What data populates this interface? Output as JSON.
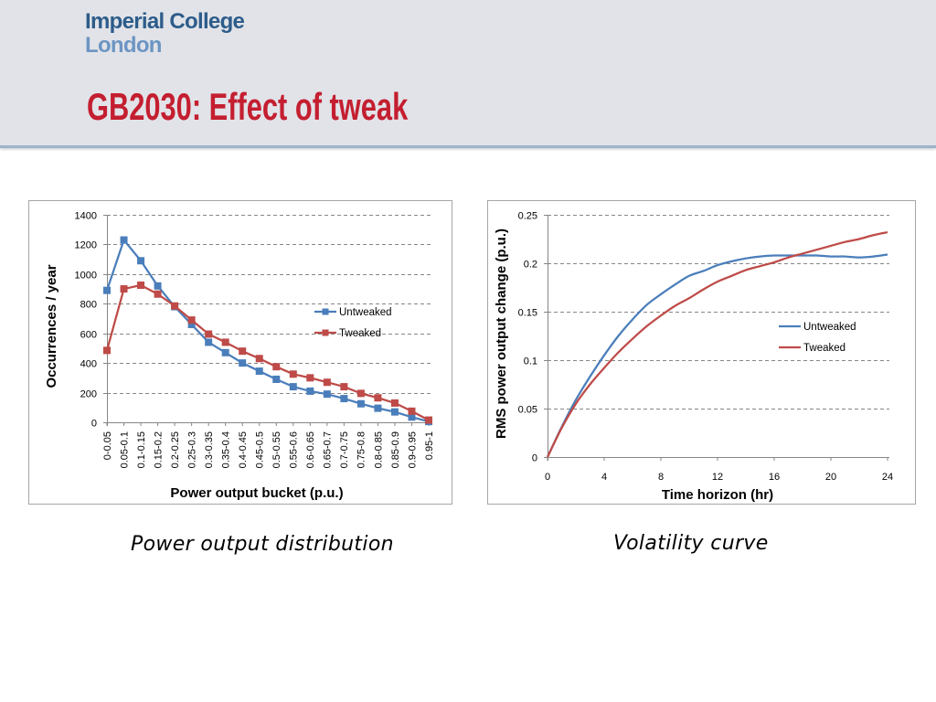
{
  "header": {
    "logo_line1": "Imperial College",
    "logo_line2": "London",
    "title": "GB2030: Effect of tweak"
  },
  "colors": {
    "header_bg": "#e1e3e8",
    "title": "#c41e30",
    "logo_primary": "#2d5c8a",
    "logo_secondary": "#6c95c3"
  },
  "captions": {
    "left": "Power output distribution",
    "right": "Volatility curve"
  },
  "chart_data": [
    {
      "type": "line",
      "categories": [
        "0-0.05",
        "0.05-0.1",
        "0.1-0.15",
        "0.15-0.2",
        "0.2-0.25",
        "0.25-0.3",
        "0.3-0.35",
        "0.35-0.4",
        "0.4-0.45",
        "0.45-0.5",
        "0.5-0.55",
        "0.55-0.6",
        "0.6-0.65",
        "0.65-0.7",
        "0.7-0.75",
        "0.75-0.8",
        "0.8-0.85",
        "0.85-0.9",
        "0.9-0.95",
        "0.95-1"
      ],
      "series": [
        {
          "name": "Untweaked",
          "color": "#4a7ebb",
          "marker": "square",
          "values": [
            890,
            1230,
            1090,
            920,
            780,
            660,
            540,
            470,
            400,
            345,
            290,
            240,
            210,
            190,
            160,
            125,
            95,
            70,
            35,
            5
          ]
        },
        {
          "name": "Tweaked",
          "color": "#be4b48",
          "marker": "square",
          "values": [
            485,
            900,
            925,
            865,
            785,
            690,
            595,
            540,
            480,
            430,
            375,
            325,
            300,
            270,
            240,
            195,
            165,
            130,
            75,
            15
          ]
        }
      ],
      "xlabel": "Power output bucket (p.u.)",
      "ylabel": "Occurrences / year",
      "ylim": [
        0,
        1400
      ],
      "yticks": [
        0,
        200,
        400,
        600,
        800,
        1000,
        1200,
        1400
      ],
      "grid": true,
      "legend": "right"
    },
    {
      "type": "line",
      "x": [
        0,
        1,
        2,
        3,
        4,
        5,
        6,
        7,
        8,
        9,
        10,
        11,
        12,
        13,
        14,
        15,
        16,
        17,
        18,
        19,
        20,
        21,
        22,
        23,
        24
      ],
      "series": [
        {
          "name": "Untweaked",
          "color": "#4a7ebb",
          "values": [
            0,
            0.031,
            0.059,
            0.083,
            0.105,
            0.125,
            0.142,
            0.157,
            0.168,
            0.178,
            0.187,
            0.192,
            0.198,
            0.202,
            0.205,
            0.207,
            0.208,
            0.208,
            0.208,
            0.208,
            0.207,
            0.207,
            0.206,
            0.207,
            0.209
          ]
        },
        {
          "name": "Tweaked",
          "color": "#be4b48",
          "values": [
            0,
            0.03,
            0.055,
            0.075,
            0.092,
            0.108,
            0.122,
            0.135,
            0.146,
            0.156,
            0.164,
            0.173,
            0.181,
            0.187,
            0.193,
            0.197,
            0.201,
            0.206,
            0.21,
            0.214,
            0.218,
            0.222,
            0.225,
            0.229,
            0.232
          ]
        }
      ],
      "xlabel": "Time horizon (hr)",
      "ylabel": "RMS power output change (p.u.)",
      "xlim": [
        0,
        24
      ],
      "ylim": [
        0,
        0.25
      ],
      "xticks": [
        0,
        4,
        8,
        12,
        16,
        20,
        24
      ],
      "yticks": [
        0,
        0.05,
        0.1,
        0.15,
        0.2,
        0.25
      ],
      "grid": true,
      "legend": "right"
    }
  ]
}
